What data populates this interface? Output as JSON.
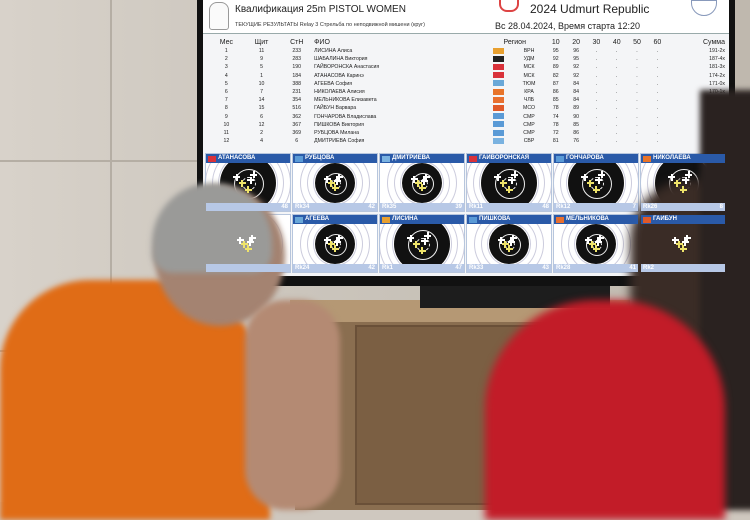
{
  "header": {
    "title": "Квалификация 25m PISTOL WOMEN",
    "subtitle": "ТЕКУЩИЕ РЕЗУЛЬТАТЫ Relay 3 Стрельба по неподвижной мишени (круг)",
    "event": "2024 Udmurt Republic",
    "date_time": "Вс 28.04.2024, Время старта 12:20"
  },
  "table": {
    "columns": [
      "Мес",
      "Щит",
      "СтН",
      "ФИО",
      "Регион",
      "10",
      "20",
      "30",
      "40",
      "50",
      "60",
      "Сумма"
    ],
    "rows": [
      {
        "pos": "1",
        "lane": "11",
        "bib": "233",
        "name": "ЛИСИНА Алиса",
        "region": "ВРН",
        "s10": "95",
        "s20": "96",
        "total": "191-2x",
        "flag": "#e8a030"
      },
      {
        "pos": "2",
        "lane": "9",
        "bib": "283",
        "name": "ШАБАЛИНА Виктория",
        "region": "УДМ",
        "s10": "92",
        "s20": "95",
        "total": "187-4x",
        "flag": "#222"
      },
      {
        "pos": "3",
        "lane": "5",
        "bib": "190",
        "name": "ГАЙВОРОНСКА Анастасия",
        "region": "МСК",
        "s10": "89",
        "s20": "92",
        "total": "181-3x",
        "flag": "#d9323a"
      },
      {
        "pos": "4",
        "lane": "1",
        "bib": "184",
        "name": "АТАНАСОВА Каринэ",
        "region": "МСК",
        "s10": "82",
        "s20": "92",
        "total": "174-2x",
        "flag": "#d9323a"
      },
      {
        "pos": "5",
        "lane": "10",
        "bib": "388",
        "name": "АГЕЕВА София",
        "region": "ТЮМ",
        "s10": "87",
        "s20": "84",
        "total": "171-0x",
        "flag": "#6aa8d8"
      },
      {
        "pos": "6",
        "lane": "7",
        "bib": "231",
        "name": "НИКОЛАЕВА Алисия",
        "region": "КРА",
        "s10": "86",
        "s20": "84",
        "total": "170-1x",
        "flag": "#e8742a"
      },
      {
        "pos": "7",
        "lane": "14",
        "bib": "354",
        "name": "МЕЛЬНИКОВА Елизавета",
        "region": "ЧЛБ",
        "s10": "85",
        "s20": "84",
        "total": "169-2x",
        "flag": "#e87030"
      },
      {
        "pos": "8",
        "lane": "15",
        "bib": "516",
        "name": "ГАЙБУН Варвара",
        "region": "МСО",
        "s10": "78",
        "s20": "89",
        "total": "167-4x",
        "flag": "#e05a2a"
      },
      {
        "pos": "9",
        "lane": "6",
        "bib": "362",
        "name": "ГОНЧАРОВА Владислава",
        "region": "СМР",
        "s10": "74",
        "s20": "90",
        "total": "164-1x",
        "flag": "#5a9ad6"
      },
      {
        "pos": "10",
        "lane": "12",
        "bib": "367",
        "name": "ПИШКОВА Виктория",
        "region": "СМР",
        "s10": "78",
        "s20": "85",
        "total": "163-0x",
        "flag": "#5a9ad6"
      },
      {
        "pos": "11",
        "lane": "2",
        "bib": "369",
        "name": "РУБЦОВА Милана",
        "region": "СМР",
        "s10": "72",
        "s20": "86",
        "total": "158-0x",
        "flag": "#5a9ad6"
      },
      {
        "pos": "12",
        "lane": "4",
        "bib": "6",
        "name": "ДМИТРИЕВА София",
        "region": "СВР",
        "s10": "81",
        "s20": "76",
        "total": "157-0x",
        "flag": "#7ab2e0"
      }
    ],
    "empty": "."
  },
  "targets": [
    {
      "name": "АТАНАСОВА",
      "rank": "",
      "score": "48",
      "flag": "#d9323a"
    },
    {
      "name": "РУБЦОВА",
      "rank": "Rk34",
      "score": "42",
      "flag": "#5a9ad6"
    },
    {
      "name": "ДМИТРИЕВА",
      "rank": "Rk35",
      "score": "39",
      "flag": "#7ab2e0"
    },
    {
      "name": "ГАЙВОРОНСКАЯ",
      "rank": "Rk11",
      "score": "48",
      "flag": "#d9323a"
    },
    {
      "name": "ГОНЧАРОВА",
      "rank": "Rk12",
      "score": "7",
      "flag": "#5a9ad6"
    },
    {
      "name": "НИКОЛАЕВА",
      "rank": "Rk26",
      "score": "8",
      "flag": "#e8742a"
    },
    {
      "name": "",
      "rank": "",
      "score": "",
      "flag": "#fff"
    },
    {
      "name": "АГЕЕВА",
      "rank": "Rk24",
      "score": "42",
      "flag": "#6aa8d8"
    },
    {
      "name": "ЛИСИНА",
      "rank": "Rk1",
      "score": "47",
      "flag": "#e8a030"
    },
    {
      "name": "ПИШКОВА",
      "rank": "Rk33",
      "score": "43",
      "flag": "#5a9ad6"
    },
    {
      "name": "МЕЛЬНИКОВА",
      "rank": "Rk28",
      "score": "41",
      "flag": "#e87030"
    },
    {
      "name": "ГАЙБУН",
      "rank": "Rk2",
      "score": "",
      "flag": "#e05a2a"
    }
  ]
}
